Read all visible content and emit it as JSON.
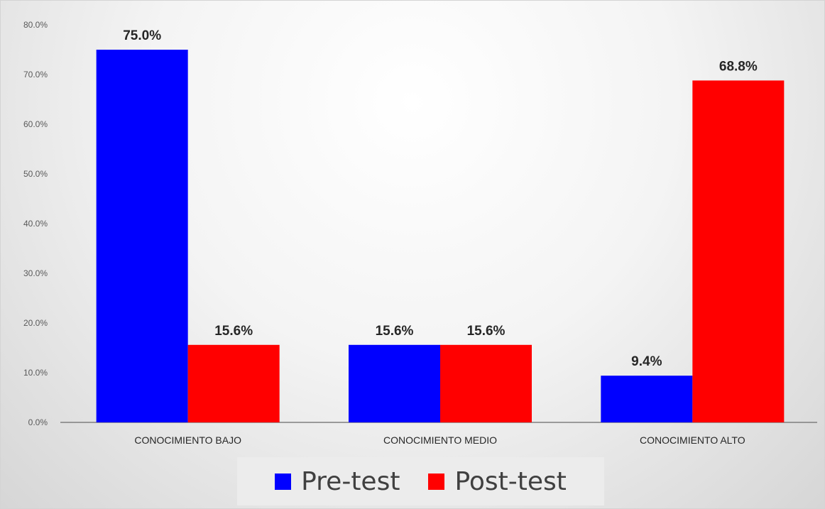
{
  "chart_data": {
    "type": "bar",
    "title": "",
    "xlabel": "",
    "ylabel": "",
    "categories": [
      "CONOCIMIENTO BAJO",
      "CONOCIMIENTO MEDIO",
      "CONOCIMIENTO  ALTO"
    ],
    "series": [
      {
        "name": "Pre-test",
        "color": "#0000ff",
        "values": [
          75.0,
          15.6,
          9.4
        ],
        "labels": [
          "75.0%",
          "15.6%",
          "9.4%"
        ]
      },
      {
        "name": "Post-test",
        "color": "#ff0000",
        "values": [
          15.6,
          15.6,
          68.8
        ],
        "labels": [
          "15.6%",
          "15.6%",
          "68.8%"
        ]
      }
    ],
    "ylim": [
      0,
      80
    ],
    "yticks": [
      0,
      10,
      20,
      30,
      40,
      50,
      60,
      70,
      80
    ],
    "ytick_labels": [
      "0.0%",
      "10.0%",
      "20.0%",
      "30.0%",
      "40.0%",
      "50.0%",
      "60.0%",
      "70.0%",
      "80.0%"
    ],
    "grid": false,
    "legend_position": "bottom"
  },
  "legend": {
    "items": [
      {
        "label": "Pre-test",
        "color": "#0000ff"
      },
      {
        "label": "Post-test",
        "color": "#ff0000"
      }
    ]
  }
}
